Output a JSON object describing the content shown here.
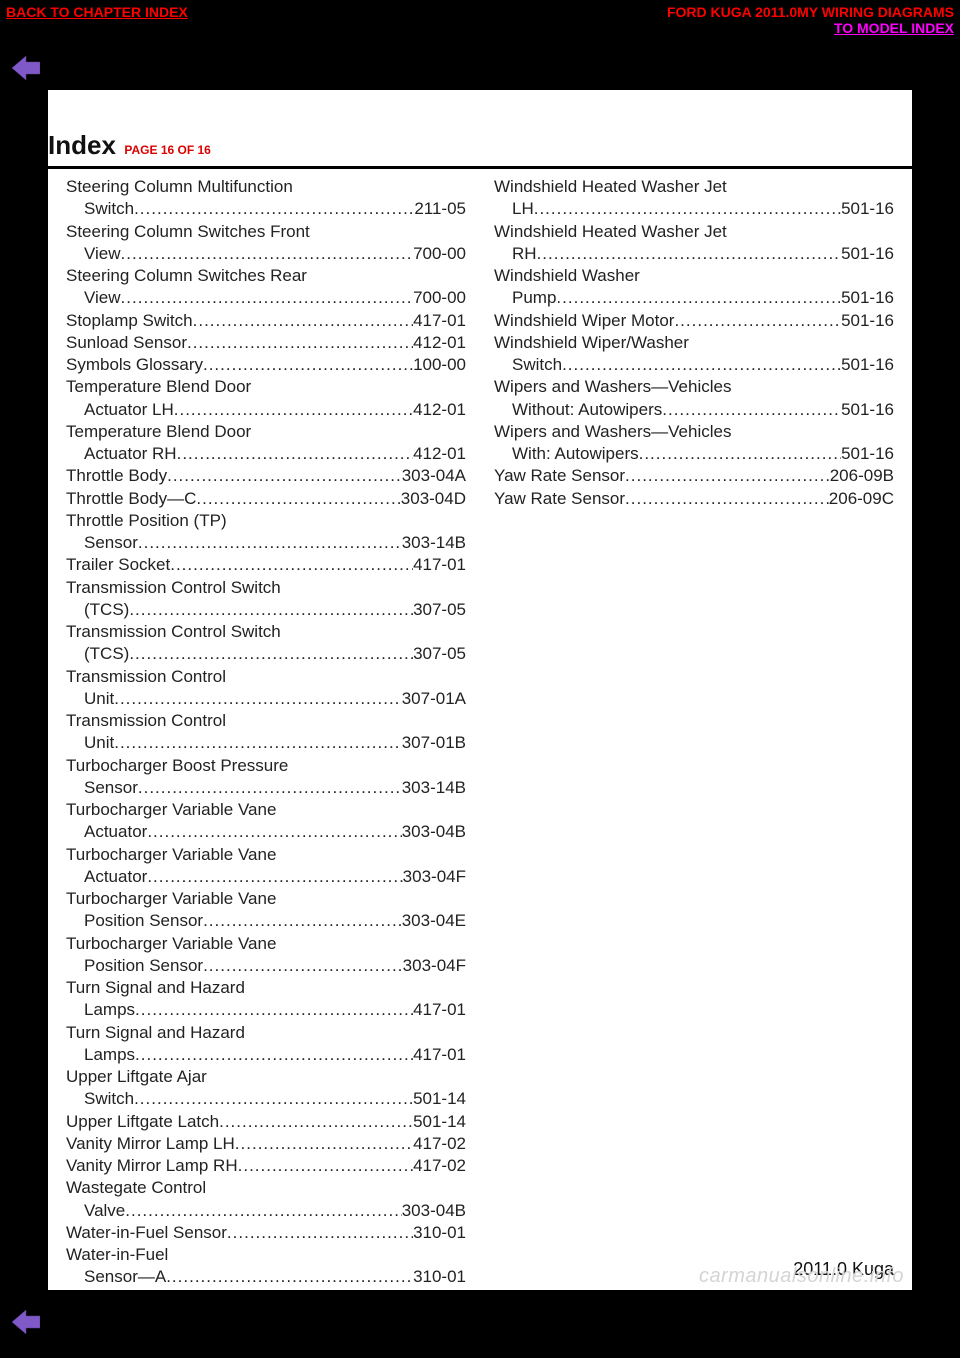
{
  "header": {
    "back_to_chapter": "BACK TO CHAPTER INDEX",
    "title_right": "FORD KUGA 2011.0MY WIRING DIAGRAMS",
    "to_model": "TO MODEL INDEX"
  },
  "index": {
    "title": "Index",
    "page_label": "PAGE 16 OF 16"
  },
  "dots": "..................................................................................",
  "columns": {
    "left": [
      {
        "l1": "Steering Column Multifunction",
        "l2": "Switch",
        "page": "211-05"
      },
      {
        "l1": "Steering Column Switches Front",
        "l2": "View",
        "page": "700-00"
      },
      {
        "l1": "Steering Column Switches Rear",
        "l2": "View",
        "page": "700-00"
      },
      {
        "single": "Stoplamp  Switch",
        "page": "417-01"
      },
      {
        "single": "Sunload  Sensor",
        "page": "412-01"
      },
      {
        "single": "Symbols  Glossary",
        "page": "100-00"
      },
      {
        "l1": "Temperature Blend Door",
        "l2": "Actuator  LH",
        "page": "412-01"
      },
      {
        "l1": "Temperature Blend Door",
        "l2": "Actuator RH",
        "page": "412-01"
      },
      {
        "single": "Throttle  Body",
        "page": "303-04A"
      },
      {
        "single": "Throttle Body—C",
        "page": "303-04D"
      },
      {
        "l1": "Throttle Position (TP)",
        "l2": "Sensor",
        "page": "303-14B"
      },
      {
        "single": "Trailer Socket",
        "page": "417-01"
      },
      {
        "l1": "Transmission Control Switch",
        "l2": "(TCS)",
        "page": "307-05"
      },
      {
        "l1": "Transmission Control Switch",
        "l2": "(TCS)",
        "page": "307-05"
      },
      {
        "l1": "Transmission Control",
        "l2": "Unit",
        "page": "307-01A"
      },
      {
        "l1": "Transmission Control",
        "l2": "Unit",
        "page": "307-01B"
      },
      {
        "l1": "Turbocharger Boost Pressure",
        "l2": "Sensor",
        "page": "303-14B"
      },
      {
        "l1": "Turbocharger Variable Vane",
        "l2": "Actuator",
        "page": "303-04B"
      },
      {
        "l1": "Turbocharger Variable Vane",
        "l2": "Actuator",
        "page": "303-04F"
      },
      {
        "l1": "Turbocharger Variable Vane",
        "l2": "Position Sensor",
        "page": "303-04E"
      },
      {
        "l1": "Turbocharger Variable Vane",
        "l2": "Position  Sensor",
        "page": "303-04F"
      },
      {
        "l1": "Turn Signal and Hazard",
        "l2": "Lamps",
        "page": "417-01"
      },
      {
        "l1": "Turn Signal and Hazard",
        "l2": "Lamps",
        "page": "417-01"
      },
      {
        "l1": "Upper Liftgate Ajar",
        "l2": "Switch",
        "page": "501-14"
      },
      {
        "single": "Upper  Liftgate  Latch",
        "page": "501-14"
      },
      {
        "single": "Vanity Mirror Lamp LH",
        "page": "417-02"
      },
      {
        "single": "Vanity  Mirror  Lamp  RH",
        "page": "417-02"
      },
      {
        "l1": "Wastegate Control",
        "l2": "Valve",
        "page": "303-04B"
      },
      {
        "single": "Water-in-Fuel Sensor",
        "page": "310-01"
      },
      {
        "l1": "Water-in-Fuel",
        "l2": "Sensor—A",
        "page": "310-01"
      }
    ],
    "right": [
      {
        "l1": "Windshield Heated Washer Jet",
        "l2": "LH",
        "page": "501-16"
      },
      {
        "l1": "Windshield Heated Washer Jet",
        "l2": "RH",
        "page": "501-16"
      },
      {
        "l1": "Windshield Washer",
        "l2": "Pump",
        "page": "501-16"
      },
      {
        "single": "Windshield Wiper Motor",
        "page": "501-16"
      },
      {
        "l1": "Windshield Wiper/Washer",
        "l2": "Switch",
        "page": "501-16"
      },
      {
        "l1": "Wipers and Washers—Vehicles",
        "l2": "Without:  Autowipers",
        "page": "501-16"
      },
      {
        "l1": "Wipers and Washers—Vehicles",
        "l2": "With:  Autowipers",
        "page": "501-16"
      },
      {
        "single": "Yaw Rate Sensor",
        "page": "206-09B"
      },
      {
        "single": "Yaw  Rate  Sensor",
        "page": "206-09C"
      }
    ]
  },
  "footer": {
    "model": "2011.0 Kuga",
    "watermark": "carmanualsonline.info"
  },
  "colors": {
    "red": "#ff0000",
    "magenta": "#ff00ff",
    "text": "#222222",
    "bg_page": "#ffffff",
    "bg_outer": "#000000",
    "arrow_fill": "#8059c8"
  }
}
